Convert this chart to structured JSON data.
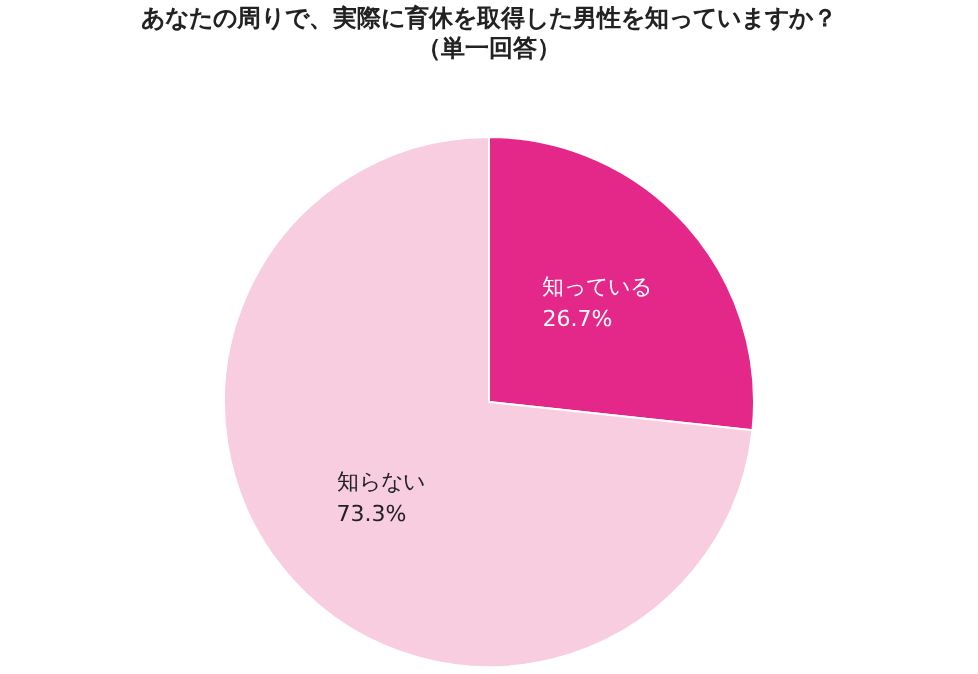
{
  "chart_data": {
    "type": "pie",
    "title": "あなたの周りで、実際に育休を取得した男性を知っていますか？",
    "subtitle": "（単一回答）",
    "categories": [
      "知っている",
      "知らない"
    ],
    "values": [
      26.7,
      73.3
    ],
    "colors": [
      "#e4288a",
      "#f8cde0"
    ],
    "value_labels": [
      "26.7%",
      "73.3%"
    ],
    "legend": false
  }
}
